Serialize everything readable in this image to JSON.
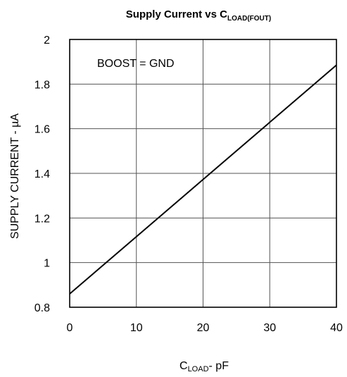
{
  "chart_data": {
    "type": "line",
    "title": {
      "main": "Supply Current vs C",
      "subscript": "LOAD(FOUT)"
    },
    "xlabel": {
      "main": "C",
      "subscript": "LOAD",
      "suffix": "- pF"
    },
    "ylabel": "SUPPLY CURRENT - µA",
    "xlim": [
      0,
      40
    ],
    "ylim": [
      0.8,
      2
    ],
    "xticks": [
      0,
      10,
      20,
      30,
      40
    ],
    "xtick_labels": [
      "0",
      "10",
      "20",
      "30",
      "40"
    ],
    "yticks": [
      0.8,
      1,
      1.2,
      1.4,
      1.6,
      1.8,
      2
    ],
    "ytick_labels": [
      "0.8",
      "1",
      "1.2",
      "1.4",
      "1.6",
      "1.8",
      "2"
    ],
    "grid": true,
    "annotation": "BOOST = GND",
    "series": [
      {
        "x": [
          0,
          40
        ],
        "y": [
          0.86,
          1.885
        ],
        "color": "#000000"
      }
    ]
  }
}
